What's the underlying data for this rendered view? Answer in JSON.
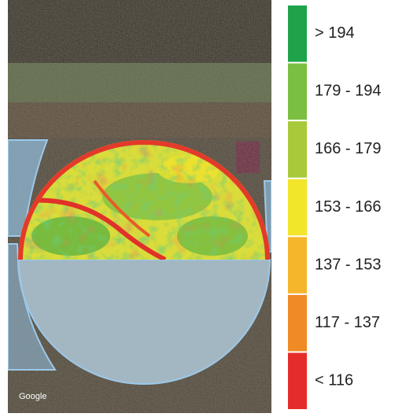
{
  "map": {
    "watermark": "Google"
  },
  "legend": {
    "items": [
      {
        "label": "> 194",
        "color": "#1fa34a"
      },
      {
        "label": "179 - 194",
        "color": "#7bbf42"
      },
      {
        "label": "166 - 179",
        "color": "#a8ca3a"
      },
      {
        "label": "153 - 166",
        "color": "#f2e52a"
      },
      {
        "label": "137 - 153",
        "color": "#f6b62c"
      },
      {
        "label": "117 - 137",
        "color": "#ef8a25"
      },
      {
        "label": "< 116",
        "color": "#e52c2a"
      }
    ]
  }
}
